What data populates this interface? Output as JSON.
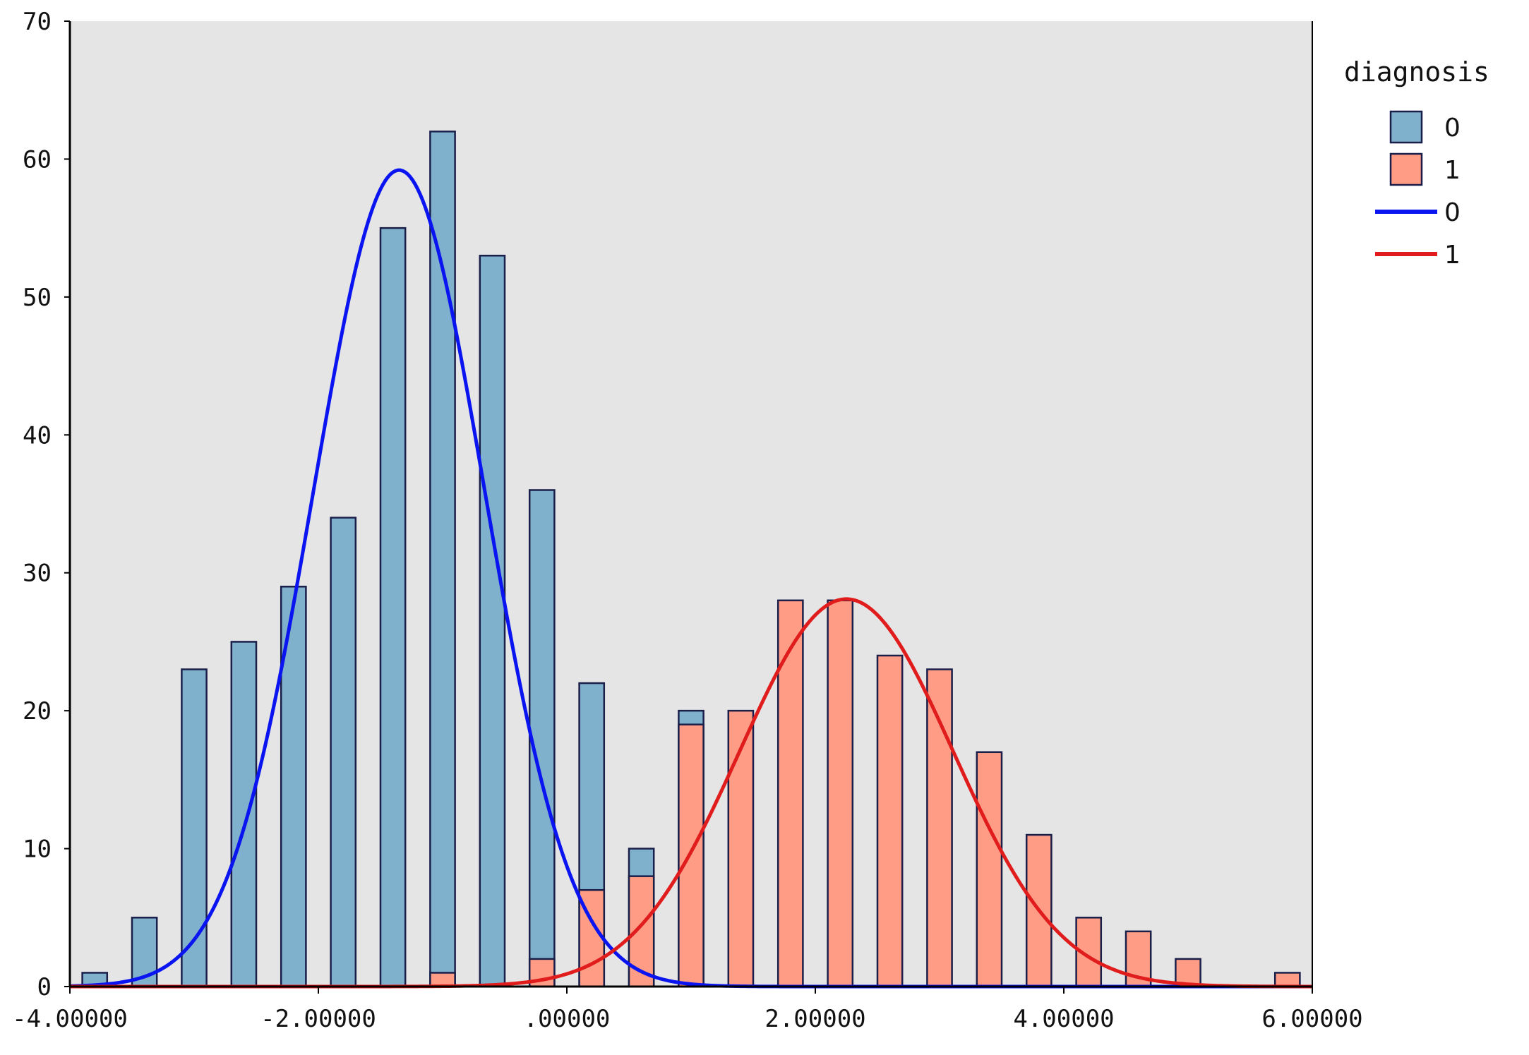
{
  "chart_data": {
    "type": "bar",
    "subtype": "overlaid histogram with fitted normal curves",
    "title": "",
    "xlabel": "",
    "ylabel": "",
    "xlim": [
      -4,
      6
    ],
    "ylim": [
      0,
      70
    ],
    "grid": false,
    "background": "#e5e5e5",
    "x_ticks": [
      {
        "value": -4,
        "label": "-4.00000"
      },
      {
        "value": -2,
        "label": "-2.00000"
      },
      {
        "value": 0,
        "label": ".00000"
      },
      {
        "value": 2,
        "label": "2.00000"
      },
      {
        "value": 4,
        "label": "4.00000"
      },
      {
        "value": 6,
        "label": "6.00000"
      }
    ],
    "y_ticks": [
      {
        "value": 0,
        "label": "0"
      },
      {
        "value": 10,
        "label": "10"
      },
      {
        "value": 20,
        "label": "20"
      },
      {
        "value": 30,
        "label": "30"
      },
      {
        "value": 40,
        "label": "40"
      },
      {
        "value": 50,
        "label": "50"
      },
      {
        "value": 60,
        "label": "60"
      },
      {
        "value": 70,
        "label": "70"
      }
    ],
    "bin_width": 0.2,
    "series": [
      {
        "name": "0",
        "kind": "bars",
        "color": "#7fb0cc",
        "bars": [
          {
            "x": -3.8,
            "count": 1
          },
          {
            "x": -3.4,
            "count": 5
          },
          {
            "x": -3.0,
            "count": 23
          },
          {
            "x": -2.6,
            "count": 25
          },
          {
            "x": -2.2,
            "count": 29
          },
          {
            "x": -1.8,
            "count": 34
          },
          {
            "x": -1.4,
            "count": 55
          },
          {
            "x": -1.0,
            "count": 62
          },
          {
            "x": -0.6,
            "count": 53
          },
          {
            "x": -0.2,
            "count": 36
          },
          {
            "x": 0.2,
            "count": 22
          },
          {
            "x": 0.6,
            "count": 10
          },
          {
            "x": 1.0,
            "count": 20
          }
        ]
      },
      {
        "name": "1",
        "kind": "bars",
        "color": "#fe9c86",
        "bars": [
          {
            "x": -1.0,
            "count": 1
          },
          {
            "x": -0.2,
            "count": 2
          },
          {
            "x": 0.2,
            "count": 7
          },
          {
            "x": 0.6,
            "count": 8
          },
          {
            "x": 1.0,
            "count": 19
          },
          {
            "x": 1.4,
            "count": 20
          },
          {
            "x": 1.8,
            "count": 28
          },
          {
            "x": 2.2,
            "count": 28
          },
          {
            "x": 2.6,
            "count": 24
          },
          {
            "x": 3.0,
            "count": 23
          },
          {
            "x": 3.4,
            "count": 17
          },
          {
            "x": 3.8,
            "count": 11
          },
          {
            "x": 4.2,
            "count": 5
          },
          {
            "x": 4.6,
            "count": 4
          },
          {
            "x": 5.0,
            "count": 2
          },
          {
            "x": 5.8,
            "count": 1
          }
        ]
      },
      {
        "name": "0",
        "kind": "normal-curve",
        "color": "#0a14f0",
        "mean": -1.35,
        "sd": 0.69,
        "peak": 59.2
      },
      {
        "name": "1",
        "kind": "normal-curve",
        "color": "#e01c1c",
        "mean": 2.25,
        "sd": 0.86,
        "peak": 28.1
      }
    ],
    "legend": {
      "title": "diagnosis",
      "position": "right",
      "entries": [
        {
          "label": "0",
          "type": "bar",
          "color": "#7fb0cc"
        },
        {
          "label": "1",
          "type": "bar",
          "color": "#fe9c86"
        },
        {
          "label": "0",
          "type": "line",
          "color": "#0a14f0"
        },
        {
          "label": "1",
          "type": "line",
          "color": "#e01c1c"
        }
      ]
    }
  }
}
